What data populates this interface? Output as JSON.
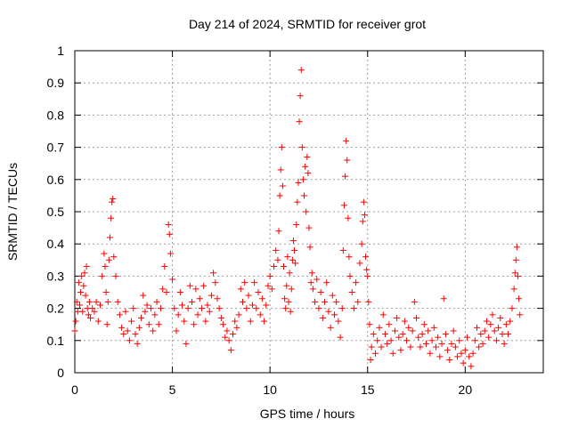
{
  "chart_data": {
    "type": "scatter",
    "title": "Day 214 of 2024, SRMTID for receiver grot",
    "xlabel": "GPS time / hours",
    "ylabel": "SRMTID / TECUs",
    "xlim": [
      0,
      24
    ],
    "ylim": [
      0,
      1
    ],
    "xticks": [
      "0",
      "5",
      "10",
      "15",
      "20"
    ],
    "yticks": [
      "0",
      "0.1",
      "0.2",
      "0.3",
      "0.4",
      "0.5",
      "0.6",
      "0.7",
      "0.8",
      "0.9",
      "1"
    ],
    "grid": true,
    "marker": "plus",
    "color": "#ff0000",
    "series": [
      {
        "name": "SRMTID",
        "points": [
          [
            0.0,
            0.13
          ],
          [
            0.05,
            0.16
          ],
          [
            0.1,
            0.22
          ],
          [
            0.15,
            0.19
          ],
          [
            0.2,
            0.28
          ],
          [
            0.25,
            0.21
          ],
          [
            0.3,
            0.25
          ],
          [
            0.35,
            0.3
          ],
          [
            0.4,
            0.19
          ],
          [
            0.45,
            0.27
          ],
          [
            0.5,
            0.31
          ],
          [
            0.55,
            0.24
          ],
          [
            0.6,
            0.33
          ],
          [
            0.65,
            0.2
          ],
          [
            0.7,
            0.18
          ],
          [
            0.75,
            0.22
          ],
          [
            0.8,
            0.17
          ],
          [
            0.9,
            0.2
          ],
          [
            1.0,
            0.19
          ],
          [
            1.1,
            0.22
          ],
          [
            1.2,
            0.16
          ],
          [
            1.3,
            0.21
          ],
          [
            1.4,
            0.3
          ],
          [
            1.5,
            0.37
          ],
          [
            1.55,
            0.33
          ],
          [
            1.6,
            0.25
          ],
          [
            1.65,
            0.15
          ],
          [
            1.7,
            0.22
          ],
          [
            1.75,
            0.35
          ],
          [
            1.8,
            0.42
          ],
          [
            1.85,
            0.48
          ],
          [
            1.9,
            0.53
          ],
          [
            1.95,
            0.54
          ],
          [
            2.0,
            0.36
          ],
          [
            2.1,
            0.3
          ],
          [
            2.2,
            0.22
          ],
          [
            2.3,
            0.18
          ],
          [
            2.4,
            0.14
          ],
          [
            2.5,
            0.12
          ],
          [
            2.6,
            0.19
          ],
          [
            2.7,
            0.13
          ],
          [
            2.8,
            0.1
          ],
          [
            2.9,
            0.16
          ],
          [
            3.0,
            0.2
          ],
          [
            3.1,
            0.12
          ],
          [
            3.2,
            0.09
          ],
          [
            3.3,
            0.14
          ],
          [
            3.4,
            0.17
          ],
          [
            3.5,
            0.24
          ],
          [
            3.6,
            0.19
          ],
          [
            3.7,
            0.21
          ],
          [
            3.8,
            0.15
          ],
          [
            3.9,
            0.2
          ],
          [
            4.0,
            0.13
          ],
          [
            4.1,
            0.18
          ],
          [
            4.2,
            0.22
          ],
          [
            4.3,
            0.15
          ],
          [
            4.4,
            0.2
          ],
          [
            4.5,
            0.26
          ],
          [
            4.6,
            0.33
          ],
          [
            4.7,
            0.25
          ],
          [
            4.8,
            0.46
          ],
          [
            4.85,
            0.43
          ],
          [
            4.9,
            0.37
          ],
          [
            5.0,
            0.29
          ],
          [
            5.1,
            0.2
          ],
          [
            5.2,
            0.13
          ],
          [
            5.3,
            0.18
          ],
          [
            5.4,
            0.25
          ],
          [
            5.5,
            0.21
          ],
          [
            5.6,
            0.16
          ],
          [
            5.7,
            0.09
          ],
          [
            5.8,
            0.2
          ],
          [
            5.9,
            0.27
          ],
          [
            6.0,
            0.22
          ],
          [
            6.1,
            0.15
          ],
          [
            6.2,
            0.26
          ],
          [
            6.3,
            0.18
          ],
          [
            6.4,
            0.23
          ],
          [
            6.5,
            0.2
          ],
          [
            6.6,
            0.27
          ],
          [
            6.7,
            0.16
          ],
          [
            6.8,
            0.21
          ],
          [
            6.9,
            0.19
          ],
          [
            7.0,
            0.24
          ],
          [
            7.1,
            0.31
          ],
          [
            7.2,
            0.28
          ],
          [
            7.3,
            0.23
          ],
          [
            7.4,
            0.2
          ],
          [
            7.5,
            0.17
          ],
          [
            7.6,
            0.15
          ],
          [
            7.7,
            0.11
          ],
          [
            7.8,
            0.13
          ],
          [
            7.9,
            0.1
          ],
          [
            8.0,
            0.07
          ],
          [
            8.1,
            0.12
          ],
          [
            8.2,
            0.16
          ],
          [
            8.3,
            0.14
          ],
          [
            8.4,
            0.18
          ],
          [
            8.5,
            0.26
          ],
          [
            8.6,
            0.22
          ],
          [
            8.7,
            0.28
          ],
          [
            8.8,
            0.2
          ],
          [
            8.9,
            0.24
          ],
          [
            9.0,
            0.16
          ],
          [
            9.1,
            0.21
          ],
          [
            9.2,
            0.28
          ],
          [
            9.3,
            0.2
          ],
          [
            9.4,
            0.25
          ],
          [
            9.5,
            0.18
          ],
          [
            9.6,
            0.23
          ],
          [
            9.7,
            0.16
          ],
          [
            9.8,
            0.21
          ],
          [
            9.9,
            0.27
          ],
          [
            10.0,
            0.3
          ],
          [
            10.1,
            0.26
          ],
          [
            10.2,
            0.33
          ],
          [
            10.3,
            0.38
          ],
          [
            10.4,
            0.35
          ],
          [
            10.45,
            0.44
          ],
          [
            10.5,
            0.55
          ],
          [
            10.55,
            0.63
          ],
          [
            10.6,
            0.7
          ],
          [
            10.65,
            0.58
          ],
          [
            10.7,
            0.33
          ],
          [
            10.75,
            0.23
          ],
          [
            10.8,
            0.2
          ],
          [
            10.85,
            0.27
          ],
          [
            10.9,
            0.36
          ],
          [
            10.95,
            0.22
          ],
          [
            11.0,
            0.31
          ],
          [
            11.05,
            0.19
          ],
          [
            11.1,
            0.26
          ],
          [
            11.15,
            0.35
          ],
          [
            11.2,
            0.41
          ],
          [
            11.25,
            0.38
          ],
          [
            11.3,
            0.34
          ],
          [
            11.35,
            0.46
          ],
          [
            11.4,
            0.53
          ],
          [
            11.45,
            0.59
          ],
          [
            11.5,
            0.78
          ],
          [
            11.55,
            0.86
          ],
          [
            11.6,
            0.94
          ],
          [
            11.65,
            0.7
          ],
          [
            11.7,
            0.6
          ],
          [
            11.75,
            0.55
          ],
          [
            11.8,
            0.64
          ],
          [
            11.85,
            0.5
          ],
          [
            11.9,
            0.67
          ],
          [
            11.95,
            0.62
          ],
          [
            12.0,
            0.45
          ],
          [
            12.05,
            0.39
          ],
          [
            12.1,
            0.28
          ],
          [
            12.15,
            0.31
          ],
          [
            12.2,
            0.26
          ],
          [
            12.3,
            0.22
          ],
          [
            12.4,
            0.29
          ],
          [
            12.5,
            0.2
          ],
          [
            12.6,
            0.25
          ],
          [
            12.7,
            0.17
          ],
          [
            12.8,
            0.22
          ],
          [
            12.9,
            0.28
          ],
          [
            13.0,
            0.19
          ],
          [
            13.1,
            0.14
          ],
          [
            13.2,
            0.24
          ],
          [
            13.3,
            0.18
          ],
          [
            13.4,
            0.22
          ],
          [
            13.5,
            0.16
          ],
          [
            13.6,
            0.11
          ],
          [
            13.7,
            0.2
          ],
          [
            13.75,
            0.38
          ],
          [
            13.8,
            0.52
          ],
          [
            13.85,
            0.61
          ],
          [
            13.9,
            0.72
          ],
          [
            13.95,
            0.66
          ],
          [
            14.0,
            0.48
          ],
          [
            14.05,
            0.36
          ],
          [
            14.1,
            0.3
          ],
          [
            14.2,
            0.25
          ],
          [
            14.3,
            0.2
          ],
          [
            14.4,
            0.28
          ],
          [
            14.5,
            0.22
          ],
          [
            14.6,
            0.34
          ],
          [
            14.7,
            0.4
          ],
          [
            14.75,
            0.47
          ],
          [
            14.8,
            0.53
          ],
          [
            14.85,
            0.49
          ],
          [
            14.9,
            0.36
          ],
          [
            14.95,
            0.32
          ],
          [
            15.0,
            0.3
          ],
          [
            15.05,
            0.22
          ],
          [
            15.1,
            0.15
          ],
          [
            15.15,
            0.04
          ],
          [
            15.2,
            0.08
          ],
          [
            15.3,
            0.12
          ],
          [
            15.4,
            0.06
          ],
          [
            15.5,
            0.1
          ],
          [
            15.6,
            0.14
          ],
          [
            15.7,
            0.08
          ],
          [
            15.8,
            0.18
          ],
          [
            15.9,
            0.12
          ],
          [
            16.0,
            0.09
          ],
          [
            16.1,
            0.15
          ],
          [
            16.2,
            0.1
          ],
          [
            16.3,
            0.06
          ],
          [
            16.4,
            0.13
          ],
          [
            16.5,
            0.17
          ],
          [
            16.6,
            0.11
          ],
          [
            16.7,
            0.07
          ],
          [
            16.8,
            0.12
          ],
          [
            16.9,
            0.16
          ],
          [
            17.0,
            0.1
          ],
          [
            17.1,
            0.14
          ],
          [
            17.2,
            0.08
          ],
          [
            17.3,
            0.13
          ],
          [
            17.4,
            0.22
          ],
          [
            17.5,
            0.17
          ],
          [
            17.6,
            0.11
          ],
          [
            17.7,
            0.08
          ],
          [
            17.8,
            0.12
          ],
          [
            17.9,
            0.15
          ],
          [
            18.0,
            0.09
          ],
          [
            18.1,
            0.13
          ],
          [
            18.2,
            0.06
          ],
          [
            18.3,
            0.1
          ],
          [
            18.4,
            0.14
          ],
          [
            18.5,
            0.08
          ],
          [
            18.6,
            0.11
          ],
          [
            18.7,
            0.05
          ],
          [
            18.8,
            0.09
          ],
          [
            18.9,
            0.23
          ],
          [
            19.0,
            0.12
          ],
          [
            19.1,
            0.07
          ],
          [
            19.2,
            0.04
          ],
          [
            19.3,
            0.09
          ],
          [
            19.4,
            0.13
          ],
          [
            19.5,
            0.08
          ],
          [
            19.6,
            0.05
          ],
          [
            19.7,
            0.1
          ],
          [
            19.8,
            0.06
          ],
          [
            19.9,
            0.03
          ],
          [
            20.0,
            0.07
          ],
          [
            20.1,
            0.11
          ],
          [
            20.2,
            0.05
          ],
          [
            20.3,
            0.02
          ],
          [
            20.4,
            0.06
          ],
          [
            20.5,
            0.1
          ],
          [
            20.6,
            0.14
          ],
          [
            20.7,
            0.08
          ],
          [
            20.8,
            0.12
          ],
          [
            20.9,
            0.09
          ],
          [
            21.0,
            0.13
          ],
          [
            21.1,
            0.16
          ],
          [
            21.2,
            0.11
          ],
          [
            21.3,
            0.15
          ],
          [
            21.4,
            0.18
          ],
          [
            21.5,
            0.13
          ],
          [
            21.6,
            0.1
          ],
          [
            21.7,
            0.14
          ],
          [
            21.8,
            0.17
          ],
          [
            21.9,
            0.12
          ],
          [
            22.0,
            0.09
          ],
          [
            22.1,
            0.15
          ],
          [
            22.2,
            0.12
          ],
          [
            22.3,
            0.16
          ],
          [
            22.4,
            0.2
          ],
          [
            22.5,
            0.26
          ],
          [
            22.55,
            0.31
          ],
          [
            22.6,
            0.35
          ],
          [
            22.65,
            0.39
          ],
          [
            22.7,
            0.3
          ],
          [
            22.75,
            0.23
          ],
          [
            22.8,
            0.18
          ]
        ]
      }
    ]
  }
}
